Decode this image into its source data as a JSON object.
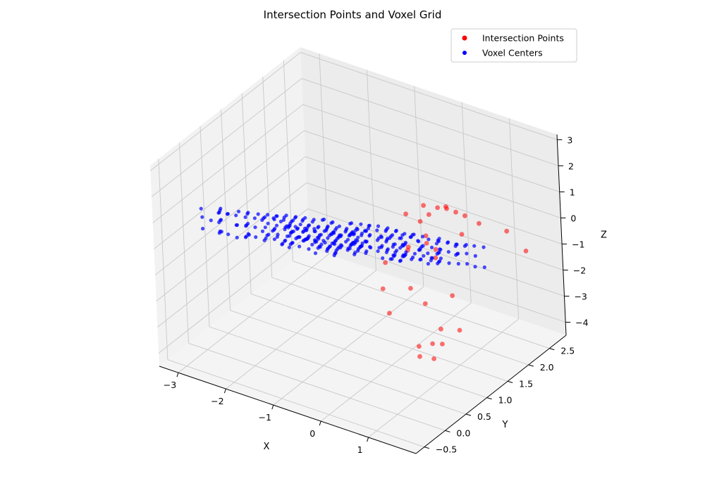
{
  "chart_data": {
    "type": "scatter",
    "projection": "3d",
    "title": "Intersection Points and Voxel Grid",
    "xlabel": "X",
    "ylabel": "Y",
    "zlabel": "Z",
    "xlim": [
      -3.4,
      2.0
    ],
    "ylim": [
      -0.7,
      2.9
    ],
    "zlim": [
      -4.5,
      3.2
    ],
    "xticks": [
      -3,
      -2,
      -1,
      0,
      1
    ],
    "xtick_labels": [
      "−3",
      "−2",
      "−1",
      "0",
      "1"
    ],
    "yticks": [
      -0.5,
      0.0,
      0.5,
      1.0,
      1.5,
      2.0,
      2.5
    ],
    "ytick_labels": [
      "−0.5",
      "0.0",
      "0.5",
      "1.0",
      "1.5",
      "2.0",
      "2.5"
    ],
    "zticks": [
      -4,
      -3,
      -2,
      -1,
      0,
      1,
      2,
      3
    ],
    "ztick_labels": [
      "−4",
      "−3",
      "−2",
      "−1",
      "0",
      "1",
      "2",
      "3"
    ],
    "grid": true,
    "legend_position": "top-right",
    "series": [
      {
        "name": "Intersection Points",
        "color": "#ff0000",
        "marker": "circle",
        "points": [
          [
            0.3,
            1.9,
            0.6
          ],
          [
            0.4,
            2.0,
            0.5
          ],
          [
            0.2,
            1.8,
            0.4
          ],
          [
            0.5,
            2.1,
            0.3
          ],
          [
            0.1,
            1.7,
            0.2
          ],
          [
            0.3,
            1.6,
            -0.1
          ],
          [
            0.6,
            2.2,
            0.1
          ],
          [
            0.0,
            1.9,
            0.5
          ],
          [
            0.4,
            1.5,
            -0.2
          ],
          [
            0.2,
            2.2,
            0.2
          ],
          [
            -0.2,
            1.7,
            0.3
          ],
          [
            0.7,
            2.0,
            -0.3
          ],
          [
            0.5,
            1.6,
            -0.5
          ],
          [
            0.1,
            1.4,
            -0.4
          ],
          [
            0.8,
            2.3,
            -0.2
          ],
          [
            1.2,
            2.5,
            -0.5
          ],
          [
            1.5,
            2.6,
            -1.2
          ],
          [
            0.9,
            1.2,
            -2.8
          ],
          [
            1.1,
            1.0,
            -3.0
          ],
          [
            0.8,
            1.1,
            -3.3
          ],
          [
            1.0,
            0.9,
            -3.5
          ],
          [
            0.6,
            1.0,
            -3.4
          ],
          [
            1.3,
            1.2,
            -2.6
          ],
          [
            0.7,
            0.9,
            -3.6
          ],
          [
            0.0,
            1.0,
            -2.5
          ],
          [
            -0.3,
            1.2,
            -2.0
          ],
          [
            0.2,
            1.3,
            -1.8
          ],
          [
            -0.5,
            1.5,
            -1.5
          ],
          [
            0.5,
            1.3,
            -2.2
          ],
          [
            -0.1,
            1.6,
            -0.9
          ],
          [
            0.3,
            1.8,
            -1.2
          ],
          [
            0.9,
            1.5,
            -1.9
          ]
        ]
      },
      {
        "name": "Voxel Centers",
        "color": "#0000ff",
        "marker": "circle",
        "grid": {
          "x": [
            -3.0,
            0.6,
            0.2
          ],
          "y": [
            -0.2,
            2.6,
            0.2
          ],
          "z_plane": {
            "base": -0.4,
            "slope_x": 0.9,
            "slope_y": -1.0,
            "thickness": 1.2,
            "step": 0.4
          }
        }
      }
    ]
  }
}
